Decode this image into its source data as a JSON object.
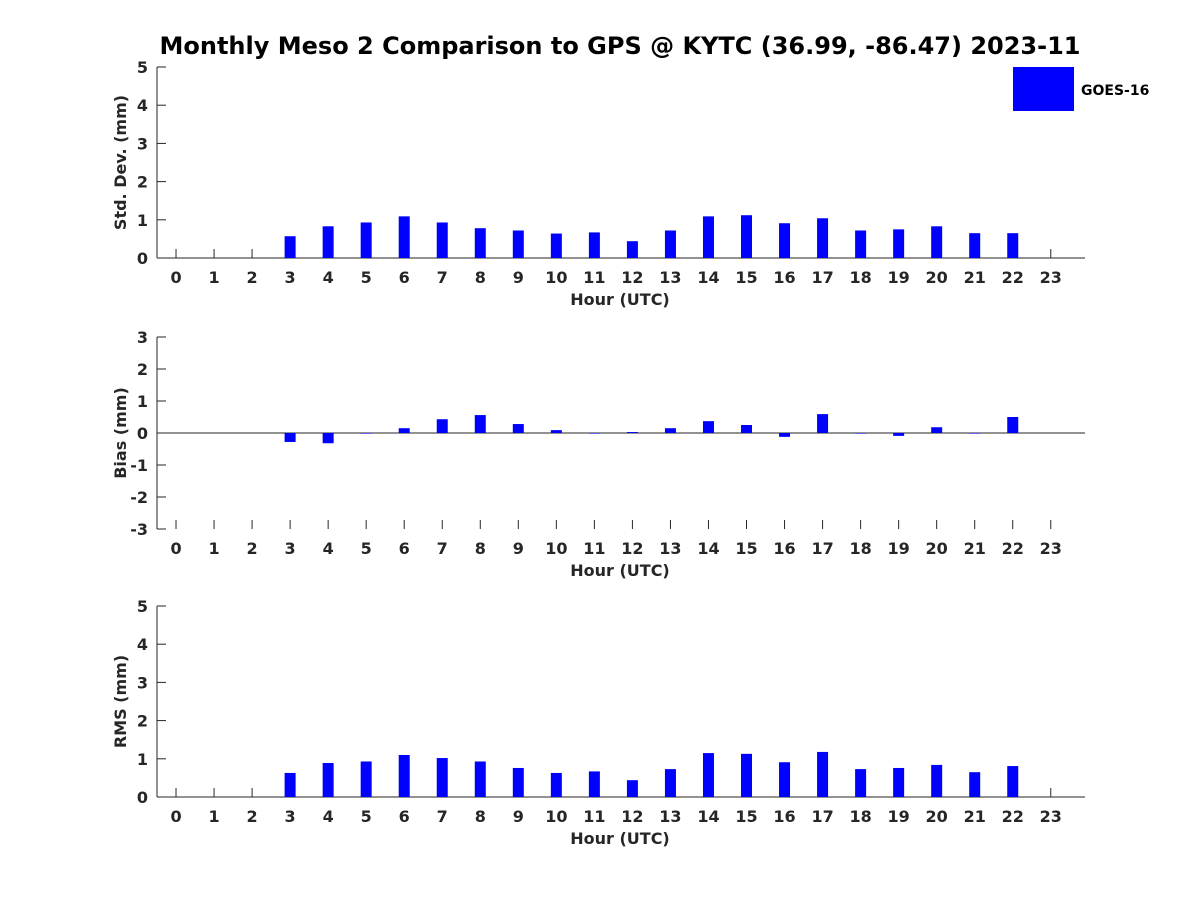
{
  "title": "Monthly Meso 2 Comparison to GPS @ KYTC (36.99, -86.47) 2023-11",
  "legend": {
    "label": "GOES-16",
    "color": "#0000ff",
    "position": "top-right"
  },
  "chart_data": [
    {
      "type": "bar",
      "name": "std-dev",
      "ylabel": "Std. Dev. (mm)",
      "xlabel": "Hour (UTC)",
      "ylim": [
        0,
        5
      ],
      "yticks": [
        "0",
        "1",
        "2",
        "3",
        "4",
        "5"
      ],
      "categories": [
        "0",
        "1",
        "2",
        "3",
        "4",
        "5",
        "6",
        "7",
        "8",
        "9",
        "10",
        "11",
        "12",
        "13",
        "14",
        "15",
        "16",
        "17",
        "18",
        "19",
        "20",
        "21",
        "22",
        "23"
      ],
      "series": [
        {
          "name": "GOES-16",
          "values": [
            null,
            null,
            null,
            0.57,
            0.83,
            0.93,
            1.09,
            0.93,
            0.78,
            0.72,
            0.64,
            0.67,
            0.44,
            0.72,
            1.09,
            1.12,
            0.91,
            1.04,
            0.72,
            0.75,
            0.83,
            0.65,
            0.65,
            null
          ]
        }
      ]
    },
    {
      "type": "bar",
      "name": "bias",
      "ylabel": "Bias (mm)",
      "xlabel": "Hour (UTC)",
      "ylim": [
        -3,
        3
      ],
      "yticks": [
        "-3",
        "-2",
        "-1",
        "0",
        "1",
        "2",
        "3"
      ],
      "categories": [
        "0",
        "1",
        "2",
        "3",
        "4",
        "5",
        "6",
        "7",
        "8",
        "9",
        "10",
        "11",
        "12",
        "13",
        "14",
        "15",
        "16",
        "17",
        "18",
        "19",
        "20",
        "21",
        "22",
        "23"
      ],
      "series": [
        {
          "name": "GOES-16",
          "values": [
            null,
            null,
            null,
            -0.28,
            -0.32,
            0.0,
            0.15,
            0.43,
            0.56,
            0.28,
            0.09,
            0.0,
            0.03,
            0.15,
            0.37,
            0.25,
            -0.12,
            0.59,
            0.0,
            -0.09,
            0.18,
            0.0,
            0.5,
            null
          ]
        }
      ]
    },
    {
      "type": "bar",
      "name": "rms",
      "ylabel": "RMS (mm)",
      "xlabel": "Hour (UTC)",
      "ylim": [
        0,
        5
      ],
      "yticks": [
        "0",
        "1",
        "2",
        "3",
        "4",
        "5"
      ],
      "categories": [
        "0",
        "1",
        "2",
        "3",
        "4",
        "5",
        "6",
        "7",
        "8",
        "9",
        "10",
        "11",
        "12",
        "13",
        "14",
        "15",
        "16",
        "17",
        "18",
        "19",
        "20",
        "21",
        "22",
        "23"
      ],
      "series": [
        {
          "name": "GOES-16",
          "values": [
            null,
            null,
            null,
            0.63,
            0.89,
            0.93,
            1.1,
            1.02,
            0.93,
            0.76,
            0.63,
            0.67,
            0.44,
            0.73,
            1.15,
            1.13,
            0.91,
            1.18,
            0.73,
            0.76,
            0.84,
            0.65,
            0.81,
            null
          ]
        }
      ]
    }
  ]
}
